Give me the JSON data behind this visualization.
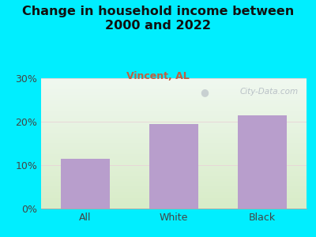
{
  "title": "Change in household income between\n2000 and 2022",
  "subtitle": "Vincent, AL",
  "categories": [
    "All",
    "White",
    "Black"
  ],
  "values": [
    11.5,
    19.5,
    21.5
  ],
  "bar_color": "#b89ecc",
  "title_fontsize": 11.5,
  "title_color": "#111111",
  "subtitle_fontsize": 9,
  "subtitle_color": "#c06040",
  "tick_label_fontsize": 9,
  "ytick_color": "#444444",
  "xtick_color": "#444444",
  "ylim": [
    0,
    30
  ],
  "yticks": [
    0,
    10,
    20,
    30
  ],
  "ytick_labels": [
    "0%",
    "10%",
    "20%",
    "30%"
  ],
  "background_outer": "#00eeff",
  "plot_bg_top": "#f0f8f0",
  "plot_bg_bottom": "#d8ecc8",
  "grid_color_light": "#e8d8d8",
  "watermark_text": "City-Data.com",
  "bar_width": 0.55
}
